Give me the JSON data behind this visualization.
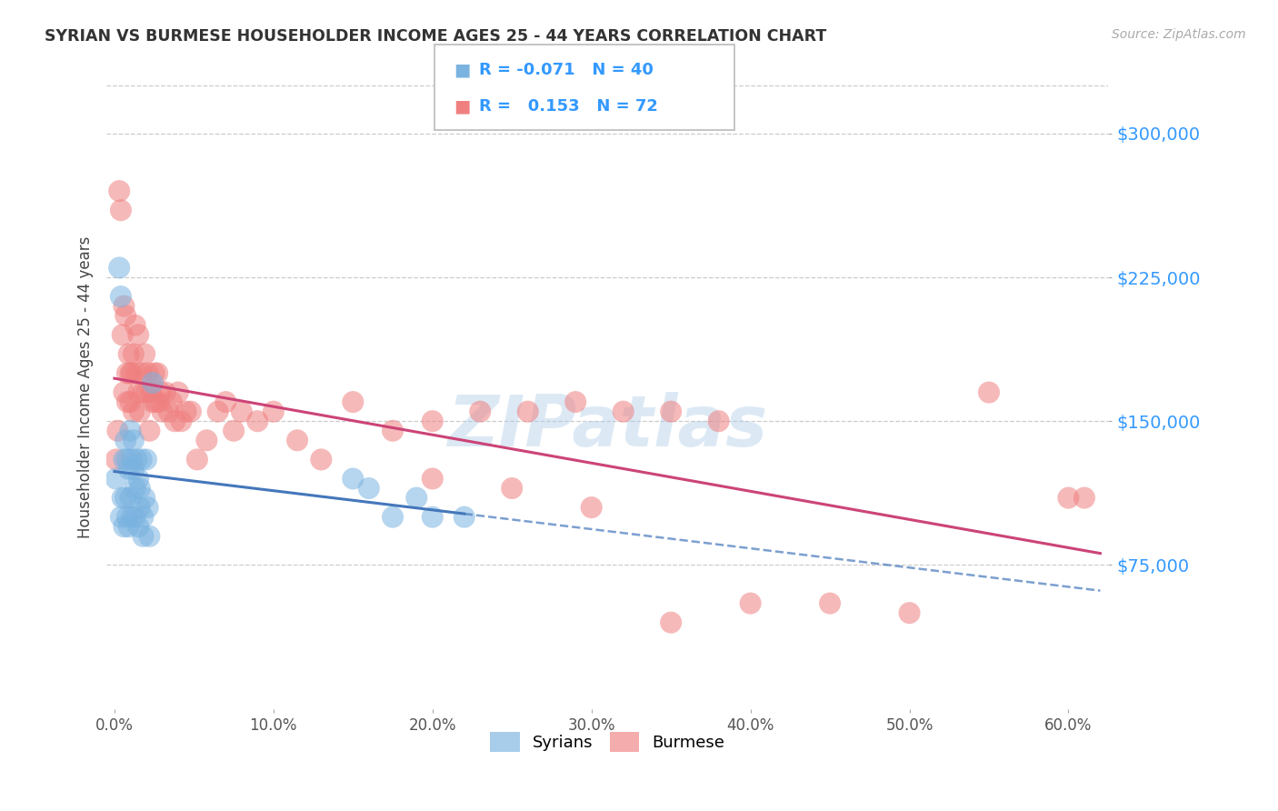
{
  "title": "SYRIAN VS BURMESE HOUSEHOLDER INCOME AGES 25 - 44 YEARS CORRELATION CHART",
  "source": "Source: ZipAtlas.com",
  "ylabel": "Householder Income Ages 25 - 44 years",
  "xlabel_ticks": [
    "0.0%",
    "10.0%",
    "20.0%",
    "30.0%",
    "40.0%",
    "50.0%",
    "60.0%"
  ],
  "xlabel_vals": [
    0.0,
    0.1,
    0.2,
    0.3,
    0.4,
    0.5,
    0.6
  ],
  "ytick_labels": [
    "$75,000",
    "$150,000",
    "$225,000",
    "$300,000"
  ],
  "ytick_vals": [
    75000,
    150000,
    225000,
    300000
  ],
  "ymin": 0,
  "ymax": 335000,
  "xmin": -0.005,
  "xmax": 0.625,
  "legend_r_syrian": "-0.071",
  "legend_n_syrian": "40",
  "legend_r_burmese": "0.153",
  "legend_n_burmese": "72",
  "watermark": "ZIPatlas",
  "watermark_color": "#a8c8e8",
  "syrian_color": "#7ab3e0",
  "burmese_color": "#f08080",
  "syrian_line_color": "#4477bb",
  "burmese_line_color": "#cc4477",
  "background_color": "#ffffff",
  "syrian_points_x": [
    0.001,
    0.003,
    0.004,
    0.004,
    0.005,
    0.006,
    0.006,
    0.007,
    0.007,
    0.008,
    0.008,
    0.009,
    0.009,
    0.01,
    0.01,
    0.011,
    0.011,
    0.012,
    0.012,
    0.013,
    0.013,
    0.014,
    0.015,
    0.015,
    0.016,
    0.016,
    0.017,
    0.018,
    0.018,
    0.019,
    0.02,
    0.021,
    0.022,
    0.024,
    0.15,
    0.16,
    0.175,
    0.19,
    0.2,
    0.22
  ],
  "syrian_points_y": [
    120000,
    230000,
    215000,
    100000,
    110000,
    130000,
    95000,
    140000,
    110000,
    130000,
    100000,
    125000,
    95000,
    145000,
    110000,
    130000,
    100000,
    125000,
    140000,
    115000,
    100000,
    130000,
    120000,
    95000,
    115000,
    105000,
    130000,
    100000,
    90000,
    110000,
    130000,
    105000,
    90000,
    170000,
    120000,
    115000,
    100000,
    110000,
    100000,
    100000
  ],
  "burmese_points_x": [
    0.001,
    0.002,
    0.003,
    0.004,
    0.005,
    0.006,
    0.006,
    0.007,
    0.008,
    0.008,
    0.009,
    0.01,
    0.01,
    0.011,
    0.012,
    0.012,
    0.013,
    0.014,
    0.015,
    0.015,
    0.016,
    0.017,
    0.018,
    0.019,
    0.02,
    0.021,
    0.022,
    0.023,
    0.024,
    0.025,
    0.026,
    0.027,
    0.028,
    0.029,
    0.03,
    0.032,
    0.034,
    0.036,
    0.038,
    0.04,
    0.042,
    0.045,
    0.048,
    0.052,
    0.058,
    0.065,
    0.07,
    0.075,
    0.08,
    0.09,
    0.1,
    0.115,
    0.13,
    0.15,
    0.175,
    0.2,
    0.23,
    0.26,
    0.29,
    0.32,
    0.35,
    0.38,
    0.2,
    0.25,
    0.3,
    0.35,
    0.4,
    0.45,
    0.5,
    0.55,
    0.6,
    0.61
  ],
  "burmese_points_y": [
    130000,
    145000,
    270000,
    260000,
    195000,
    210000,
    165000,
    205000,
    175000,
    160000,
    185000,
    175000,
    160000,
    175000,
    155000,
    185000,
    200000,
    175000,
    165000,
    195000,
    155000,
    175000,
    165000,
    185000,
    165000,
    175000,
    145000,
    165000,
    160000,
    175000,
    160000,
    175000,
    160000,
    165000,
    155000,
    165000,
    155000,
    160000,
    150000,
    165000,
    150000,
    155000,
    155000,
    130000,
    140000,
    155000,
    160000,
    145000,
    155000,
    150000,
    155000,
    140000,
    130000,
    160000,
    145000,
    150000,
    155000,
    155000,
    160000,
    155000,
    155000,
    150000,
    120000,
    115000,
    105000,
    45000,
    55000,
    55000,
    50000,
    165000,
    110000,
    110000
  ]
}
